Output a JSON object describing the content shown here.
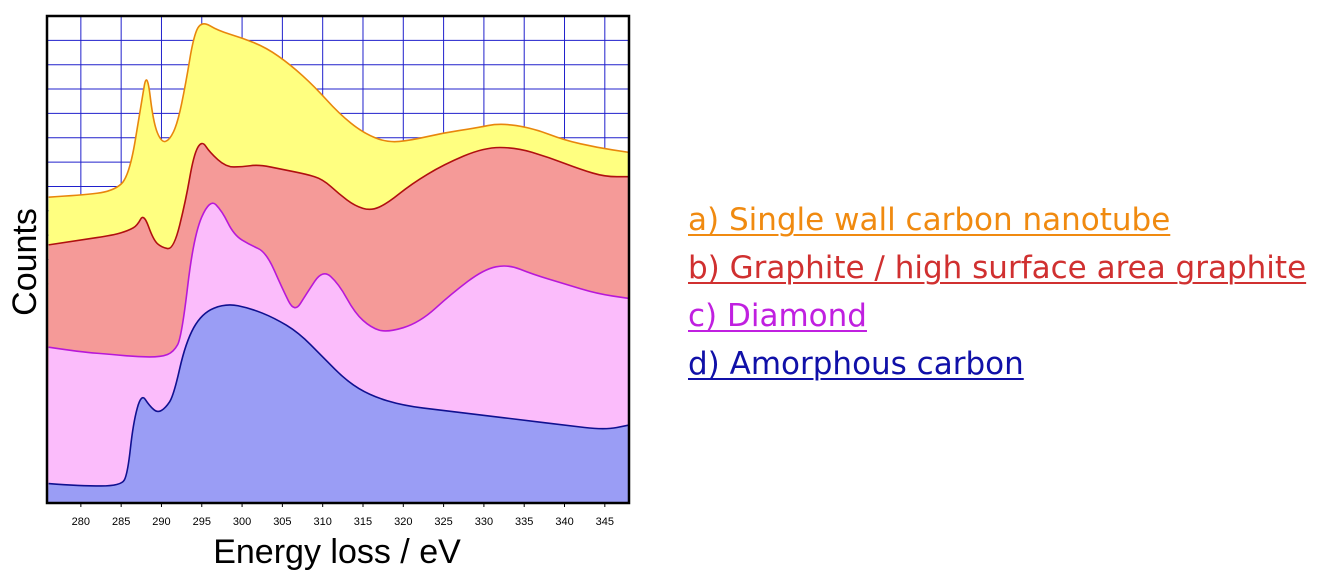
{
  "chart_data": {
    "type": "area",
    "xlabel": "Energy loss / eV",
    "ylabel": "Counts",
    "xlim": [
      275.8,
      348
    ],
    "ylim": [
      0,
      1
    ],
    "y_ticks_labeled": false,
    "grid": true,
    "grid_color": "#2020cc",
    "x_ticks": [
      280,
      285,
      290,
      295,
      300,
      305,
      310,
      315,
      320,
      325,
      330,
      335,
      340,
      345
    ],
    "x_tick_labels": [
      "280",
      "285",
      "290",
      "295",
      "300",
      "305",
      "310",
      "315",
      "320",
      "325",
      "330",
      "335",
      "340",
      "345"
    ],
    "legend_position": "right",
    "series": [
      {
        "name": "a) Single wall carbon nanotube",
        "line_color": "#e8860c",
        "fill_color": "#ffff80",
        "x": [
          276,
          280,
          284,
          286,
          287.5,
          288.2,
          289,
          290,
          291,
          292,
          293,
          294,
          295,
          297,
          300,
          303,
          306,
          309,
          312,
          315,
          318,
          321,
          325,
          329,
          332,
          336,
          340,
          344,
          348
        ],
        "y": [
          0.628,
          0.632,
          0.64,
          0.67,
          0.82,
          0.89,
          0.78,
          0.74,
          0.745,
          0.78,
          0.86,
          0.96,
          0.99,
          0.97,
          0.955,
          0.935,
          0.9,
          0.855,
          0.8,
          0.76,
          0.74,
          0.745,
          0.76,
          0.77,
          0.78,
          0.77,
          0.745,
          0.73,
          0.72
        ]
      },
      {
        "name": "b) Graphite / high surface area graphite",
        "line_color": "#b01010",
        "fill_color": "#f59a98",
        "x": [
          276,
          280,
          284,
          286,
          287,
          287.8,
          289,
          290,
          291.5,
          293,
          294,
          295,
          296,
          298,
          300,
          302,
          305,
          308,
          310,
          312,
          314,
          316,
          318,
          321,
          325,
          330,
          334,
          338,
          342,
          345,
          348
        ],
        "y": [
          0.53,
          0.54,
          0.55,
          0.56,
          0.57,
          0.595,
          0.54,
          0.525,
          0.52,
          0.62,
          0.715,
          0.745,
          0.72,
          0.69,
          0.69,
          0.695,
          0.685,
          0.675,
          0.665,
          0.635,
          0.61,
          0.6,
          0.615,
          0.655,
          0.695,
          0.73,
          0.73,
          0.71,
          0.685,
          0.67,
          0.67
        ]
      },
      {
        "name": "c) Diamond",
        "line_color": "#b818d8",
        "fill_color": "#fbbcfb",
        "x": [
          276,
          280,
          284,
          287,
          290,
          291.5,
          292.5,
          294,
          296,
          297.5,
          299,
          301,
          303,
          305,
          306.5,
          308,
          310,
          312,
          314,
          316,
          318,
          322,
          326,
          330,
          333,
          336,
          340,
          344,
          348
        ],
        "y": [
          0.32,
          0.31,
          0.305,
          0.3,
          0.3,
          0.31,
          0.34,
          0.55,
          0.625,
          0.6,
          0.55,
          0.53,
          0.515,
          0.44,
          0.39,
          0.43,
          0.48,
          0.45,
          0.39,
          0.36,
          0.35,
          0.37,
          0.43,
          0.48,
          0.49,
          0.47,
          0.45,
          0.43,
          0.42
        ]
      },
      {
        "name": "d) Amorphous carbon",
        "line_color": "#101090",
        "fill_color": "#9a9df5",
        "x": [
          276,
          280,
          285,
          285.8,
          286.5,
          287.5,
          288.5,
          289.5,
          290.5,
          291.5,
          293,
          295,
          298,
          301,
          304,
          307,
          310,
          313,
          316,
          320,
          325,
          330,
          335,
          340,
          345,
          348
        ],
        "y": [
          0.04,
          0.035,
          0.035,
          0.06,
          0.165,
          0.225,
          0.2,
          0.185,
          0.195,
          0.22,
          0.33,
          0.39,
          0.41,
          0.4,
          0.38,
          0.35,
          0.3,
          0.25,
          0.22,
          0.2,
          0.19,
          0.18,
          0.17,
          0.16,
          0.15,
          0.16
        ]
      }
    ]
  }
}
